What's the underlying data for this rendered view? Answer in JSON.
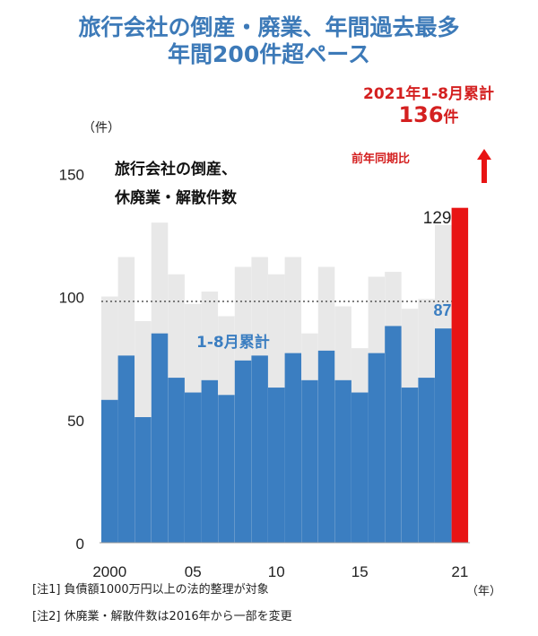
{
  "title_line1": "旅行会社の倒産・廃業、年間過去最多",
  "title_line2": "年間200件超ペース",
  "callout": {
    "period": "2021年1-8月累計",
    "count_number": "136",
    "count_unit": "件",
    "yoy": "前年同期比"
  },
  "unit_left": "（件）",
  "unit_right": "（年）",
  "notes": [
    "[注1] 負債額1000万円以上の法的整理が対象",
    "[注2] 休廃業・解散件数は2016年から一部を変更"
  ],
  "colors": {
    "title": "#3d7ab8",
    "bar_partial": "#3b7ec1",
    "bar_total": "#e8e8e8",
    "bar_highlight": "#e81414",
    "callout": "#d42020"
  },
  "chart_data": {
    "type": "bar",
    "stacked_overlay": true,
    "inline_title_lines": [
      "旅行会社の倒産、",
      "休廃業・解散件数"
    ],
    "annotation": "1-8月累計",
    "reference_line": 98,
    "ylim": [
      0,
      160
    ],
    "yticks": [
      0,
      50,
      100,
      150
    ],
    "x": [
      2000,
      2001,
      2002,
      2003,
      2004,
      2005,
      2006,
      2007,
      2008,
      2009,
      2010,
      2011,
      2012,
      2013,
      2014,
      2015,
      2016,
      2017,
      2018,
      2019,
      2020,
      2021
    ],
    "xtick_labels": [
      {
        "year": 2000,
        "label": "2000"
      },
      {
        "year": 2005,
        "label": "05"
      },
      {
        "year": 2010,
        "label": "10"
      },
      {
        "year": 2015,
        "label": "15"
      },
      {
        "year": 2021,
        "label": "21"
      }
    ],
    "series": [
      {
        "values": [
          100,
          116,
          90,
          130,
          109,
          97,
          102,
          92,
          112,
          116,
          109,
          116,
          85,
          112,
          96,
          79,
          108,
          110,
          95,
          99,
          129,
          null
        ]
      },
      {
        "name": "1-8月累計",
        "values": [
          58,
          76,
          51,
          85,
          67,
          61,
          66,
          60,
          74,
          76,
          63,
          77,
          66,
          78,
          66,
          61,
          77,
          88,
          63,
          67,
          87,
          136
        ]
      }
    ],
    "data_labels": [
      {
        "year": 2020,
        "series": 0,
        "value": "129"
      },
      {
        "year": 2020,
        "series": 1,
        "value": "87"
      }
    ]
  }
}
